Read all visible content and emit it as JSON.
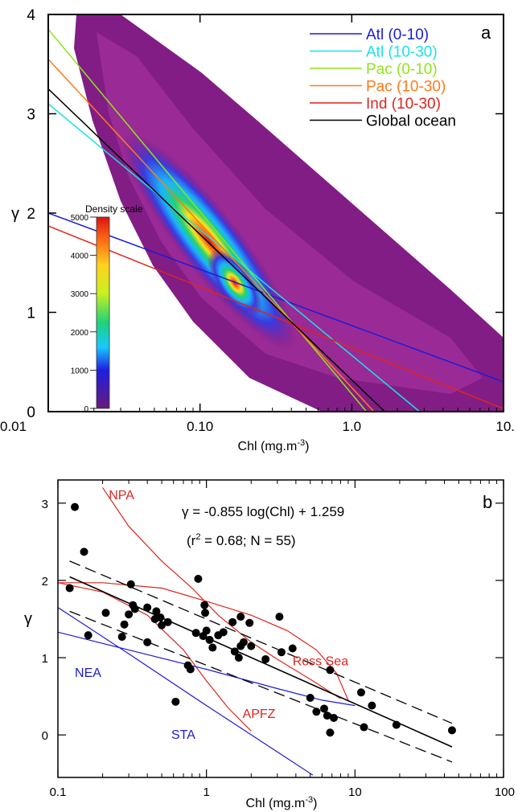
{
  "chart_data": [
    {
      "type": "heatmap",
      "panel_label": "a",
      "xlabel": "Chl (mg.m",
      "xlabel_sup": "-3",
      "xlabel_end": ")",
      "ylabel": "γ",
      "xscale": "log",
      "xlim": [
        0.01,
        10
      ],
      "ylim": [
        0,
        4
      ],
      "xticks": [
        0.01,
        0.1,
        1,
        10
      ],
      "xtick_labels": [
        "0.01",
        "0.10",
        "1.0",
        "10."
      ],
      "yticks": [
        0,
        1,
        2,
        3,
        4
      ],
      "ytick_labels": [
        "0",
        "1",
        "2",
        "3",
        "4"
      ],
      "legend_position": "top-right",
      "density_scale": {
        "title": "Density scale",
        "min": 0,
        "max": 5000,
        "ticks": [
          0,
          1000,
          2000,
          3000,
          4000,
          5000
        ],
        "tick_labels": [
          "0",
          "1000",
          "2000",
          "3000",
          "4000",
          "5000"
        ]
      },
      "density_ridge": {
        "x": [
          0.02,
          0.04,
          0.1,
          0.18,
          0.3,
          0.6
        ],
        "y": [
          3.8,
          2.8,
          1.9,
          1.1,
          0.8,
          0.5
        ]
      },
      "series": [
        {
          "name": "Atl (0-10)",
          "color": "#1c1cd6",
          "x": [
            0.01,
            10
          ],
          "y": [
            2.0,
            0.3
          ]
        },
        {
          "name": "Atl (10-30)",
          "color": "#19e3e8",
          "x": [
            0.01,
            2.8
          ],
          "y": [
            3.1,
            0.0
          ]
        },
        {
          "name": "Pac (0-10)",
          "color": "#8ee619",
          "x": [
            0.01,
            1.25
          ],
          "y": [
            3.85,
            0.0
          ]
        },
        {
          "name": "Pac (10-30)",
          "color": "#ff7a1a",
          "x": [
            0.01,
            1.4
          ],
          "y": [
            3.55,
            0.0
          ]
        },
        {
          "name": "Ind (10-30)",
          "color": "#e0241c",
          "x": [
            0.01,
            10
          ],
          "y": [
            1.87,
            0.03
          ]
        },
        {
          "name": "Global ocean",
          "color": "#000000",
          "x": [
            0.01,
            1.65
          ],
          "y": [
            3.25,
            0.0
          ]
        }
      ]
    },
    {
      "type": "scatter",
      "panel_label": "b",
      "xlabel": "Chl (mg.m",
      "xlabel_sup": "-3",
      "xlabel_end": ")",
      "ylabel": "γ",
      "xscale": "log",
      "xlim": [
        0.1,
        100
      ],
      "ylim": [
        -0.55,
        3.3
      ],
      "xticks": [
        0.1,
        1,
        10,
        100
      ],
      "xtick_labels": [
        "0.1",
        "1",
        "10",
        "100"
      ],
      "yticks": [
        0,
        1,
        2,
        3
      ],
      "ytick_labels": [
        "0",
        "1",
        "2",
        "3"
      ],
      "equation": "γ = -0.855 log(Chl) + 1.259",
      "stats_prefix": "(r",
      "stats_sup": "2",
      "stats_suffix": " = 0.68; N = 55)",
      "points": {
        "x": [
          0.12,
          0.13,
          0.15,
          0.16,
          0.21,
          0.27,
          0.28,
          0.3,
          0.31,
          0.32,
          0.33,
          0.4,
          0.45,
          0.46,
          0.49,
          0.5,
          0.62,
          0.75,
          0.78,
          0.85,
          0.88,
          0.95,
          0.97,
          0.98,
          1.0,
          1.05,
          1.1,
          1.2,
          1.3,
          1.5,
          1.55,
          1.65,
          1.7,
          1.78,
          1.95,
          2.5,
          3.1,
          3.2,
          3.8,
          5.0,
          5.5,
          6.2,
          6.5,
          6.8,
          7.2,
          11,
          11.5,
          13,
          19,
          45,
          0.4,
          0.55,
          1.7,
          2.0,
          6.8
        ],
        "y": [
          1.9,
          2.95,
          2.37,
          1.29,
          1.58,
          1.27,
          1.43,
          1.56,
          1.95,
          1.68,
          1.63,
          1.65,
          1.5,
          1.6,
          1.52,
          1.42,
          0.43,
          0.9,
          0.85,
          1.32,
          2.02,
          1.28,
          1.68,
          1.58,
          1.35,
          1.23,
          1.13,
          1.29,
          1.33,
          1.46,
          1.08,
          1.0,
          1.53,
          1.2,
          1.45,
          0.98,
          1.53,
          1.07,
          1.12,
          0.48,
          0.3,
          0.34,
          0.25,
          0.03,
          0.22,
          0.55,
          0.1,
          0.38,
          0.13,
          0.06,
          1.2,
          1.46,
          1.15,
          1.15,
          0.84
        ]
      },
      "fit": {
        "slope": -0.855,
        "intercept": 1.259,
        "color": "#000000"
      },
      "confidence_band": {
        "upper": {
          "x": [
            0.12,
            45
          ],
          "y": [
            2.25,
            0.15
          ]
        },
        "lower": {
          "x": [
            0.12,
            45
          ],
          "y": [
            1.6,
            -0.35
          ]
        }
      },
      "curves": [
        {
          "name": "NPA",
          "color": "#e0241c",
          "x": [
            0.2,
            0.3,
            0.5,
            0.8,
            1.2,
            2.0,
            3.0,
            5.0,
            8.0
          ],
          "y": [
            3.2,
            2.7,
            2.25,
            1.9,
            1.55,
            1.2,
            0.98,
            0.72,
            0.47
          ],
          "label_x": 0.22,
          "label_y": 3.05
        },
        {
          "name": "Ross Sea",
          "color": "#e0241c",
          "x": [
            0.1,
            0.2,
            0.5,
            1.0,
            2.0,
            3.5,
            5.5,
            7.5,
            9.0
          ],
          "y": [
            1.97,
            1.97,
            1.9,
            1.73,
            1.55,
            1.35,
            1.1,
            0.8,
            0.45
          ],
          "label_x": 3.8,
          "label_y": 0.9
        },
        {
          "name": "APFZ",
          "color": "#e0241c",
          "x": [
            0.1,
            0.2,
            0.4,
            0.7,
            1.0,
            1.4,
            2.0
          ],
          "y": [
            1.97,
            1.85,
            1.55,
            1.1,
            0.7,
            0.35,
            0.05
          ],
          "label_x": 1.75,
          "label_y": 0.22
        },
        {
          "name": "NEA",
          "color": "#1c1cd6",
          "x": [
            0.1,
            0.3,
            1.0,
            3.0,
            6.0,
            10.0
          ],
          "y": [
            1.33,
            1.1,
            0.85,
            0.6,
            0.45,
            0.38
          ],
          "label_x": 0.13,
          "label_y": 0.75
        },
        {
          "name": "STA",
          "color": "#1c1cd6",
          "x": [
            0.1,
            0.3,
            1.0,
            3.0,
            5.2
          ],
          "y": [
            1.65,
            1.05,
            0.38,
            -0.22,
            -0.52
          ],
          "label_x": 0.58,
          "label_y": -0.05
        }
      ]
    }
  ]
}
